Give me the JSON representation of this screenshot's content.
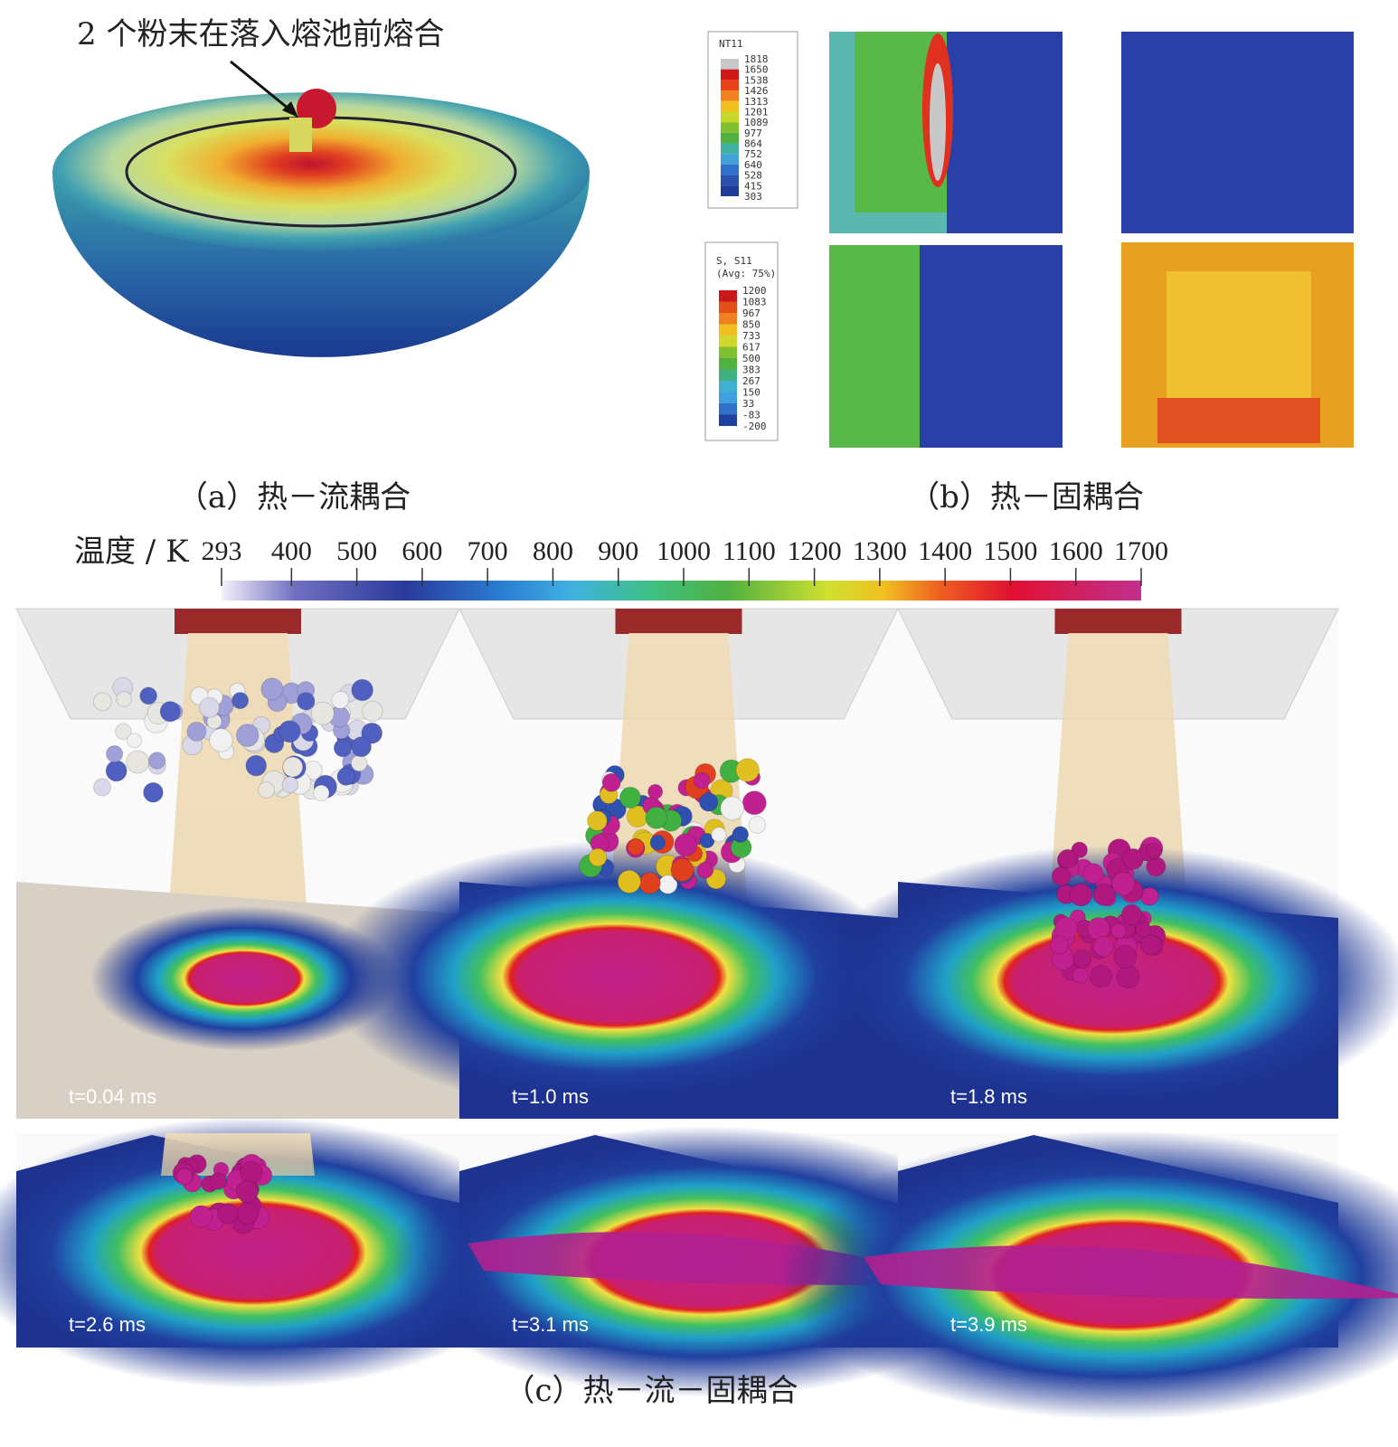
{
  "annotation": "2 个粉末在落入熔池前熔合",
  "captions": {
    "a": "（a）热－流耦合",
    "b": "（b）热－固耦合",
    "c": "（c）热－流－固耦合"
  },
  "legend_temperature": {
    "title": "NT11",
    "labels": [
      "1818",
      "1650",
      "1538",
      "1426",
      "1313",
      "1201",
      "1089",
      "977",
      "864",
      "752",
      "640",
      "528",
      "415",
      "303"
    ]
  },
  "legend_stress": {
    "title": "S, S11",
    "subtitle": "(Avg: 75%)",
    "labels": [
      "1200",
      "1083",
      "967",
      "850",
      "733",
      "617",
      "500",
      "383",
      "267",
      "150",
      "33",
      "-83",
      "-200"
    ]
  },
  "colorbar": {
    "label": "温度 / K",
    "lim": [
      293,
      1700
    ],
    "ticks": [
      293,
      400,
      500,
      600,
      700,
      800,
      900,
      1000,
      1100,
      1200,
      1300,
      1400,
      1500,
      1600,
      1700
    ]
  },
  "time_labels": [
    "t=0.04 ms",
    "t=1.0 ms",
    "t=1.8 ms",
    "t=2.6 ms",
    "t=3.1 ms",
    "t=3.9 ms"
  ]
}
